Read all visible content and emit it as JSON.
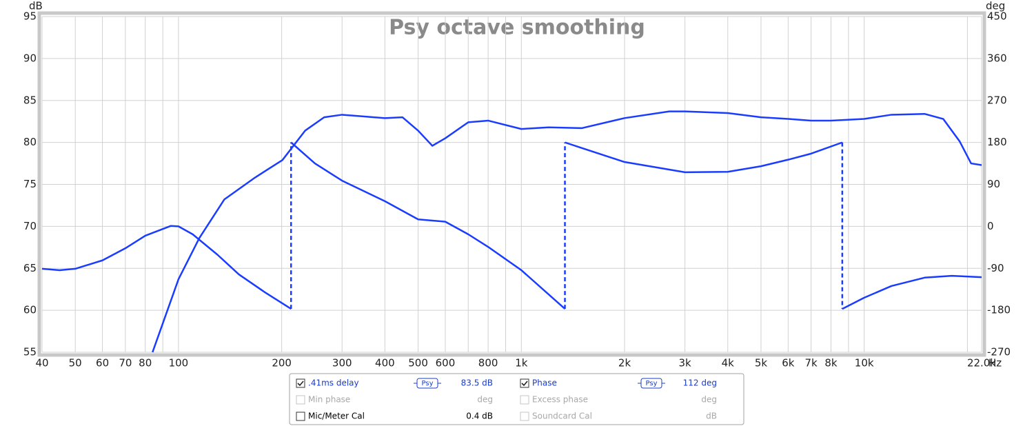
{
  "chart_data": {
    "type": "line",
    "title": "Psy octave smoothing",
    "x_unit": "Hz",
    "y_unit": "dB",
    "y2_unit": "deg",
    "log_x": true,
    "grid": true,
    "xlim": [
      40,
      22000
    ],
    "xticks": [
      40,
      50,
      60,
      70,
      80,
      100,
      200,
      300,
      400,
      500,
      600,
      800,
      {
        "value": 1000,
        "label": "1k"
      },
      {
        "value": 2000,
        "label": "2k"
      },
      {
        "value": 3000,
        "label": "3k"
      },
      {
        "value": 4000,
        "label": "4k"
      },
      {
        "value": 5000,
        "label": "5k"
      },
      {
        "value": 6000,
        "label": "6k"
      },
      {
        "value": 7000,
        "label": "7k"
      },
      {
        "value": 8000,
        "label": "8k"
      },
      {
        "value": 10000,
        "label": "10k"
      },
      {
        "value": 22000,
        "label": "22.0k"
      }
    ],
    "xgrid_minor": [
      90,
      700,
      900,
      9000,
      20000
    ],
    "ylim": [
      55,
      95
    ],
    "yticks": [
      55,
      60,
      65,
      70,
      75,
      80,
      85,
      90,
      95
    ],
    "y2lim": [
      -270,
      450
    ],
    "y2ticks": [
      -270,
      -180,
      -90,
      0,
      90,
      180,
      270,
      360,
      450
    ],
    "series": [
      {
        "name": ".41ms delay",
        "color": "#1a3cff",
        "x": [
          84,
          100,
          115,
          136,
          167,
          201,
          234,
          266,
          300,
          400,
          450,
          500,
          550,
          600,
          700,
          800,
          1000,
          1200,
          1500,
          2000,
          2700,
          3000,
          4000,
          5000,
          6000,
          7000,
          8000,
          10000,
          12000,
          15000,
          17000,
          19000,
          20500,
          22000
        ],
        "values": [
          55,
          63.7,
          68.6,
          73.2,
          75.8,
          77.9,
          81.4,
          83.0,
          83.3,
          82.9,
          83.0,
          81.4,
          79.6,
          80.5,
          82.4,
          82.6,
          81.6,
          81.8,
          81.7,
          82.9,
          83.7,
          83.7,
          83.5,
          83.0,
          82.8,
          82.6,
          82.6,
          82.8,
          83.3,
          83.4,
          82.8,
          80.1,
          77.5,
          77.3
        ]
      },
      {
        "name": "Phase",
        "color": "#1a3cff",
        "axis": "y2",
        "x": [
          40,
          45,
          50,
          60,
          70,
          80,
          95,
          100,
          110,
          130,
          150,
          180,
          213,
          213,
          250,
          300,
          400,
          500,
          600,
          700,
          800,
          1000,
          1340,
          1340,
          1500,
          2000,
          3000,
          4000,
          5000,
          6000,
          7000,
          8630,
          8630,
          10000,
          12000,
          15000,
          18000,
          22000
        ],
        "values": [
          -91,
          -94,
          -91,
          -73,
          -47,
          -20,
          1,
          0,
          -17,
          -61,
          -103,
          -143,
          -177,
          180,
          135,
          98,
          54,
          15,
          10,
          -17,
          -44,
          -94,
          -177,
          180,
          168,
          138,
          116,
          117,
          129,
          143,
          156,
          180,
          -177,
          -153,
          -128,
          -110,
          -106,
          -109
        ]
      }
    ],
    "legend_rows": [
      [
        {
          "checked": true,
          "smoothing": "Psy",
          "readout": "83.5 dB"
        },
        {
          "checked": true,
          "smoothing": "Psy",
          "readout": "112 deg"
        }
      ],
      [
        {
          "checked": false,
          "enabled": false,
          "label": "Min phase",
          "readout": "deg"
        },
        {
          "checked": false,
          "enabled": false,
          "label": "Excess phase",
          "readout": "deg"
        }
      ],
      [
        {
          "checked": false,
          "enabled": true,
          "label": "Mic/Meter Cal",
          "readout": "0.4 dB"
        },
        {
          "checked": false,
          "enabled": false,
          "label": "Soundcard Cal",
          "readout": "dB"
        }
      ]
    ]
  }
}
